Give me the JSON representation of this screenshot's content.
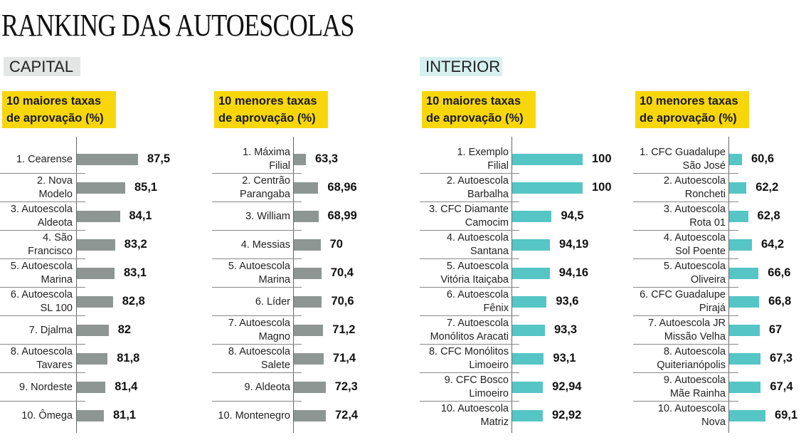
{
  "title": "RANKING DAS AUTOESCOLAS",
  "sections": {
    "capital": "CAPITAL",
    "interior": "INTERIOR"
  },
  "colors": {
    "capital_bar": "#8e9694",
    "interior_bar": "#55c5c6",
    "header_bg": "#f7d70c"
  },
  "chart_data": [
    {
      "type": "bar",
      "orientation": "horizontal",
      "section": "CAPITAL",
      "title_line1": "10 maiores taxas",
      "title_line2": "de aprovação (%)",
      "categories": [
        "1. Cearense",
        "2. Nova\nModelo",
        "3. Autoescola\nAldeota",
        "4. São\nFrancisco",
        "5. Autoescola\nMarina",
        "6. Autoescola\nSL 100",
        "7. Djalma",
        "8. Autoescola\nTavares",
        "9. Nordeste",
        "10. Ômega"
      ],
      "values": [
        87.5,
        85.1,
        84.1,
        83.2,
        83.1,
        82.8,
        82,
        81.8,
        81.4,
        81.1
      ],
      "labels": [
        "87,5",
        "85,1",
        "84,1",
        "83,2",
        "83,1",
        "82,8",
        "82",
        "81,8",
        "81,4",
        "81,1"
      ]
    },
    {
      "type": "bar",
      "orientation": "horizontal",
      "section": "CAPITAL",
      "title_line1": "10 menores taxas",
      "title_line2": "de aprovação (%)",
      "categories": [
        "1. Máxima\nFilial",
        "2. Centrão\nParangaba",
        "3. William",
        "4. Messias",
        "5. Autoescola\nMarina",
        "6. Líder",
        "7. Autoescola\nMagno",
        "8. Autoescola\nSalete",
        "9. Aldeota",
        "10. Montenegro"
      ],
      "values": [
        63.3,
        68.96,
        68.99,
        70,
        70.4,
        70.6,
        71.2,
        71.4,
        72.3,
        72.4
      ],
      "labels": [
        "63,3",
        "68,96",
        "68,99",
        "70",
        "70,4",
        "70,6",
        "71,2",
        "71,4",
        "72,3",
        "72,4"
      ]
    },
    {
      "type": "bar",
      "orientation": "horizontal",
      "section": "INTERIOR",
      "title_line1": "10 maiores taxas",
      "title_line2": "de aprovação (%)",
      "categories": [
        "1. Exemplo\nFilial",
        "2. Autoescola\nBarbalha",
        "3. CFC Diamante\nCamocim",
        "4. Autoescola\nSantana",
        "5. Autoescola\nVitória Itaiçaba",
        "6. Autoescola\nFênix",
        "7. Autoescola\nMonólitos Aracati",
        "8. CFC Monólitos\nLimoeiro",
        "9. CFC Bosco\nLimoeiro",
        "10. Autoescola\nMatriz"
      ],
      "values": [
        100,
        100,
        94.5,
        94.19,
        94.16,
        93.6,
        93.3,
        93.1,
        92.94,
        92.92
      ],
      "labels": [
        "100",
        "100",
        "94,5",
        "94,19",
        "94,16",
        "93,6",
        "93,3",
        "93,1",
        "92,94",
        "92,92"
      ]
    },
    {
      "type": "bar",
      "orientation": "horizontal",
      "section": "INTERIOR",
      "title_line1": "10 menores taxas",
      "title_line2": "de aprovação (%)",
      "categories": [
        "1. CFC Guadalupe\nSão José",
        "2. Autoescola\nRoncheti",
        "3. Autoescola\nRota 01",
        "4. Autoescola\nSol Poente",
        "5. Autoescola\nOliveira",
        "6. CFC Guadalupe\nPirajá",
        "7. Autoescola JR\nMissão Velha",
        "8. Autoescola\nQuiterianópolis",
        "9. Autoescola\nMãe Rainha",
        "10. Autoescola\nNova"
      ],
      "values": [
        60.6,
        62.2,
        62.8,
        64.2,
        66.6,
        66.8,
        67,
        67.3,
        67.4,
        69.1
      ],
      "labels": [
        "60,6",
        "62,2",
        "62,8",
        "64,2",
        "66,6",
        "66,8",
        "67",
        "67,3",
        "67,4",
        "69,1"
      ]
    }
  ]
}
